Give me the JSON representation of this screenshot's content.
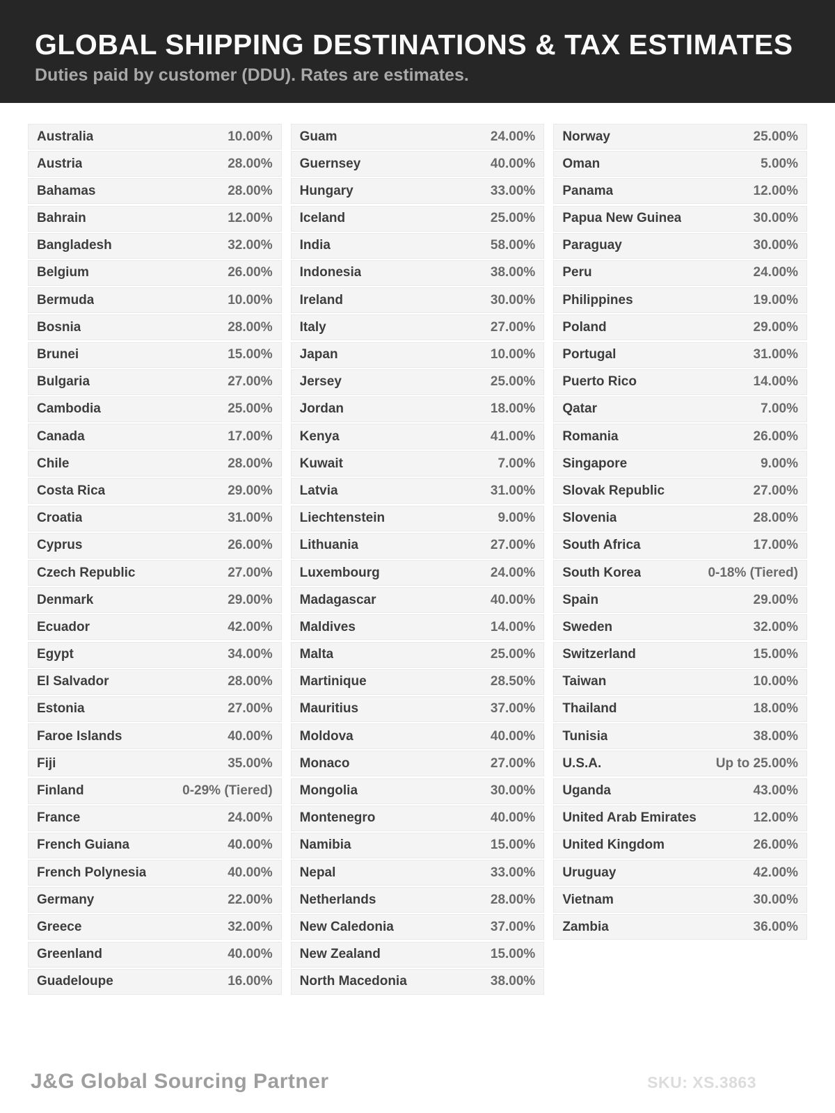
{
  "header": {
    "title": "GLOBAL SHIPPING DESTINATIONS & TAX ESTIMATES",
    "subtitle": "Duties paid by customer (DDU). Rates are estimates."
  },
  "colors": {
    "header_bg": "#262626",
    "title": "#fafafa",
    "subtitle": "#a9a9a9",
    "row_bg": "#f4f4f4",
    "country_text": "#3d3d3d",
    "rate_text": "#6a6a6a",
    "brand_text": "#9e9e9e",
    "sku_text": "#dcdcdc"
  },
  "table": {
    "columns": [
      [
        {
          "country": "Australia",
          "rate": "10.00%"
        },
        {
          "country": "Austria",
          "rate": "28.00%"
        },
        {
          "country": "Bahamas",
          "rate": "28.00%"
        },
        {
          "country": "Bahrain",
          "rate": "12.00%"
        },
        {
          "country": "Bangladesh",
          "rate": "32.00%"
        },
        {
          "country": "Belgium",
          "rate": "26.00%"
        },
        {
          "country": "Bermuda",
          "rate": "10.00%"
        },
        {
          "country": "Bosnia",
          "rate": "28.00%"
        },
        {
          "country": "Brunei",
          "rate": "15.00%"
        },
        {
          "country": "Bulgaria",
          "rate": "27.00%"
        },
        {
          "country": "Cambodia",
          "rate": "25.00%"
        },
        {
          "country": "Canada",
          "rate": "17.00%"
        },
        {
          "country": "Chile",
          "rate": "28.00%"
        },
        {
          "country": "Costa Rica",
          "rate": "29.00%"
        },
        {
          "country": "Croatia",
          "rate": "31.00%"
        },
        {
          "country": "Cyprus",
          "rate": "26.00%"
        },
        {
          "country": "Czech Republic",
          "rate": "27.00%"
        },
        {
          "country": "Denmark",
          "rate": "29.00%"
        },
        {
          "country": "Ecuador",
          "rate": "42.00%"
        },
        {
          "country": "Egypt",
          "rate": "34.00%"
        },
        {
          "country": "El Salvador",
          "rate": "28.00%"
        },
        {
          "country": "Estonia",
          "rate": "27.00%"
        },
        {
          "country": "Faroe Islands",
          "rate": "40.00%"
        },
        {
          "country": "Fiji",
          "rate": "35.00%"
        },
        {
          "country": "Finland",
          "rate": "0-29% (Tiered)"
        },
        {
          "country": "France",
          "rate": "24.00%"
        },
        {
          "country": "French Guiana",
          "rate": "40.00%"
        },
        {
          "country": "French Polynesia",
          "rate": "40.00%"
        },
        {
          "country": "Germany",
          "rate": "22.00%"
        },
        {
          "country": "Greece",
          "rate": "32.00%"
        },
        {
          "country": "Greenland",
          "rate": "40.00%"
        },
        {
          "country": "Guadeloupe",
          "rate": "16.00%"
        }
      ],
      [
        {
          "country": "Guam",
          "rate": "24.00%"
        },
        {
          "country": "Guernsey",
          "rate": "40.00%"
        },
        {
          "country": "Hungary",
          "rate": "33.00%"
        },
        {
          "country": "Iceland",
          "rate": "25.00%"
        },
        {
          "country": "India",
          "rate": "58.00%"
        },
        {
          "country": "Indonesia",
          "rate": "38.00%"
        },
        {
          "country": "Ireland",
          "rate": "30.00%"
        },
        {
          "country": "Italy",
          "rate": "27.00%"
        },
        {
          "country": "Japan",
          "rate": "10.00%"
        },
        {
          "country": "Jersey",
          "rate": "25.00%"
        },
        {
          "country": "Jordan",
          "rate": "18.00%"
        },
        {
          "country": "Kenya",
          "rate": "41.00%"
        },
        {
          "country": "Kuwait",
          "rate": "7.00%"
        },
        {
          "country": "Latvia",
          "rate": "31.00%"
        },
        {
          "country": "Liechtenstein",
          "rate": "9.00%"
        },
        {
          "country": "Lithuania",
          "rate": "27.00%"
        },
        {
          "country": "Luxembourg",
          "rate": "24.00%"
        },
        {
          "country": "Madagascar",
          "rate": "40.00%"
        },
        {
          "country": "Maldives",
          "rate": "14.00%"
        },
        {
          "country": "Malta",
          "rate": "25.00%"
        },
        {
          "country": "Martinique",
          "rate": "28.50%"
        },
        {
          "country": "Mauritius",
          "rate": "37.00%"
        },
        {
          "country": "Moldova",
          "rate": "40.00%"
        },
        {
          "country": "Monaco",
          "rate": "27.00%"
        },
        {
          "country": "Mongolia",
          "rate": "30.00%"
        },
        {
          "country": "Montenegro",
          "rate": "40.00%"
        },
        {
          "country": "Namibia",
          "rate": "15.00%"
        },
        {
          "country": "Nepal",
          "rate": "33.00%"
        },
        {
          "country": "Netherlands",
          "rate": "28.00%"
        },
        {
          "country": "New Caledonia",
          "rate": "37.00%"
        },
        {
          "country": "New Zealand",
          "rate": "15.00%"
        },
        {
          "country": "North Macedonia",
          "rate": "38.00%"
        }
      ],
      [
        {
          "country": "Norway",
          "rate": "25.00%"
        },
        {
          "country": "Oman",
          "rate": "5.00%"
        },
        {
          "country": "Panama",
          "rate": "12.00%"
        },
        {
          "country": "Papua New Guinea",
          "rate": "30.00%"
        },
        {
          "country": "Paraguay",
          "rate": "30.00%"
        },
        {
          "country": "Peru",
          "rate": "24.00%"
        },
        {
          "country": "Philippines",
          "rate": "19.00%"
        },
        {
          "country": "Poland",
          "rate": "29.00%"
        },
        {
          "country": "Portugal",
          "rate": "31.00%"
        },
        {
          "country": "Puerto Rico",
          "rate": "14.00%"
        },
        {
          "country": "Qatar",
          "rate": "7.00%"
        },
        {
          "country": "Romania",
          "rate": "26.00%"
        },
        {
          "country": "Singapore",
          "rate": "9.00%"
        },
        {
          "country": "Slovak Republic",
          "rate": "27.00%"
        },
        {
          "country": "Slovenia",
          "rate": "28.00%"
        },
        {
          "country": "South Africa",
          "rate": "17.00%"
        },
        {
          "country": "South Korea",
          "rate": "0-18% (Tiered)"
        },
        {
          "country": "Spain",
          "rate": "29.00%"
        },
        {
          "country": "Sweden",
          "rate": "32.00%"
        },
        {
          "country": "Switzerland",
          "rate": "15.00%"
        },
        {
          "country": "Taiwan",
          "rate": "10.00%"
        },
        {
          "country": "Thailand",
          "rate": "18.00%"
        },
        {
          "country": "Tunisia",
          "rate": "38.00%"
        },
        {
          "country": "U.S.A.",
          "rate": "Up to 25.00%"
        },
        {
          "country": "Uganda",
          "rate": "43.00%"
        },
        {
          "country": "United Arab Emirates",
          "rate": "12.00%"
        },
        {
          "country": "United Kingdom",
          "rate": "26.00%"
        },
        {
          "country": "Uruguay",
          "rate": "42.00%"
        },
        {
          "country": "Vietnam",
          "rate": "30.00%"
        },
        {
          "country": "Zambia",
          "rate": "36.00%"
        }
      ]
    ]
  },
  "footer": {
    "brand": "J&G Global Sourcing Partner",
    "sku": "SKU: XS.3863"
  }
}
